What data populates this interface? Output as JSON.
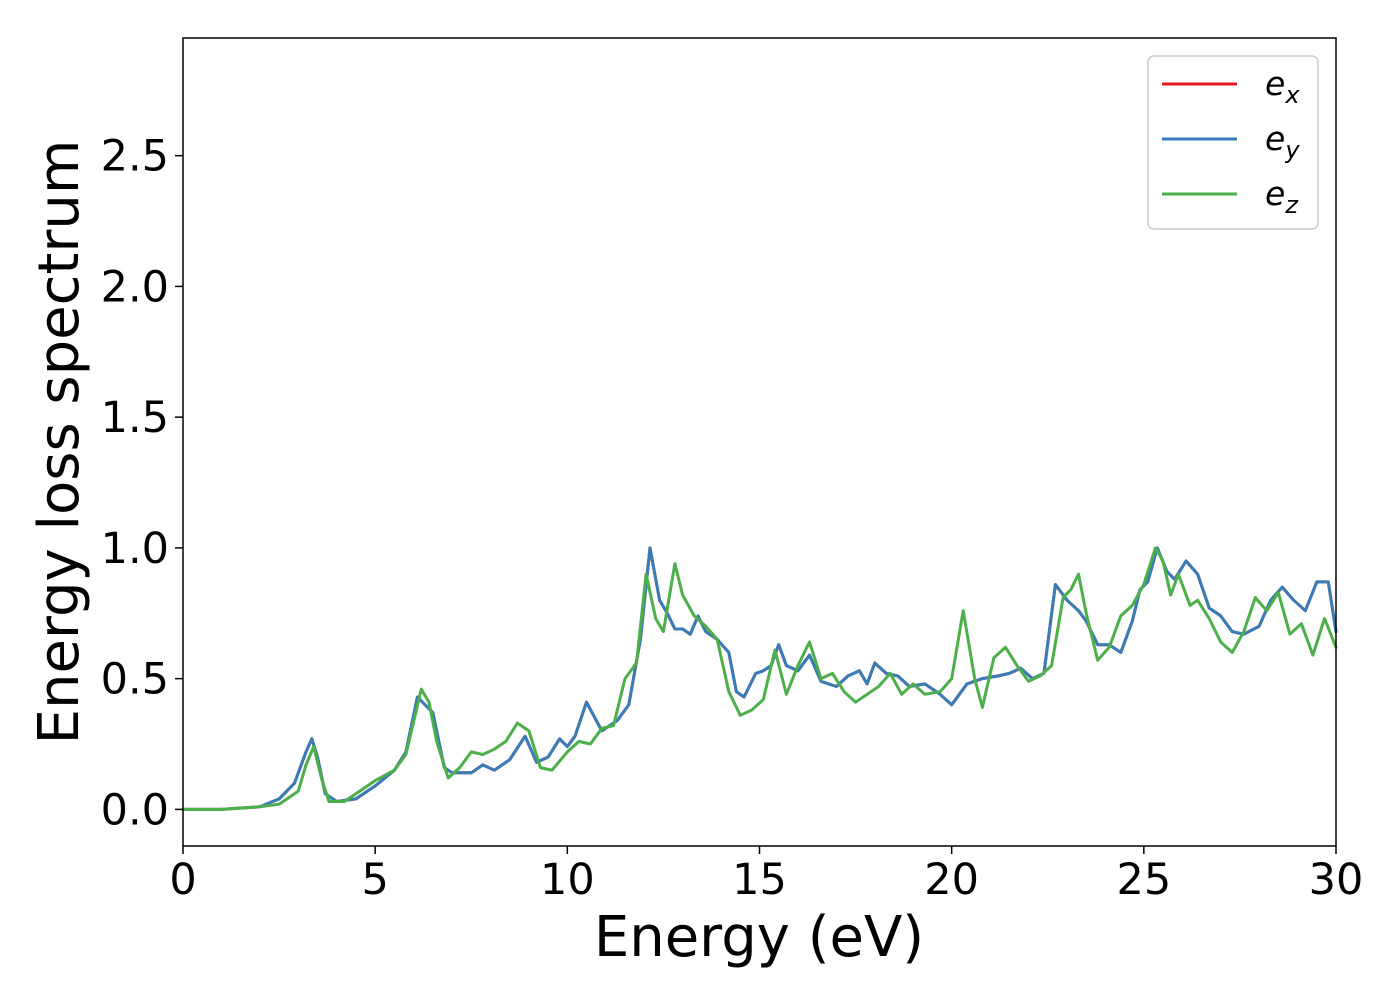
{
  "chart_data": {
    "type": "line",
    "title": "",
    "xlabel": "Energy (eV)",
    "ylabel": "Energy loss spectrum",
    "xlim": [
      0,
      30
    ],
    "ylim": [
      -0.14,
      2.95
    ],
    "x_ticks": [
      0,
      5,
      10,
      15,
      20,
      25,
      30
    ],
    "x_tick_labels": [
      "0",
      "5",
      "10",
      "15",
      "20",
      "25",
      "30"
    ],
    "y_ticks": [
      0.0,
      0.5,
      1.0,
      1.5,
      2.0,
      2.5
    ],
    "y_tick_labels": [
      "0.0",
      "0.5",
      "1.0",
      "1.5",
      "2.0",
      "2.5"
    ],
    "grid": false,
    "legend_position": "top-right",
    "series": [
      {
        "name": "e_x",
        "legend_base": "e",
        "legend_sub": "x",
        "color": "#e41a1c",
        "points": [
          [
            0,
            0
          ],
          [
            1,
            0.0
          ],
          [
            2,
            0.01
          ],
          [
            2.5,
            0.04
          ],
          [
            2.9,
            0.1
          ],
          [
            3.2,
            0.22
          ],
          [
            3.35,
            0.27
          ],
          [
            3.5,
            0.2
          ],
          [
            3.7,
            0.06
          ],
          [
            4.0,
            0.03
          ],
          [
            4.5,
            0.04
          ],
          [
            5.0,
            0.09
          ],
          [
            5.5,
            0.15
          ],
          [
            5.8,
            0.22
          ],
          [
            6.1,
            0.43
          ],
          [
            6.3,
            0.4
          ],
          [
            6.5,
            0.37
          ],
          [
            6.8,
            0.16
          ],
          [
            7.0,
            0.14
          ],
          [
            7.5,
            0.14
          ],
          [
            7.8,
            0.17
          ],
          [
            8.1,
            0.15
          ],
          [
            8.5,
            0.19
          ],
          [
            8.9,
            0.28
          ],
          [
            9.2,
            0.18
          ],
          [
            9.5,
            0.2
          ],
          [
            9.8,
            0.27
          ],
          [
            10.0,
            0.24
          ],
          [
            10.2,
            0.28
          ],
          [
            10.5,
            0.41
          ],
          [
            10.9,
            0.3
          ],
          [
            11.3,
            0.34
          ],
          [
            11.6,
            0.4
          ],
          [
            11.9,
            0.65
          ],
          [
            12.15,
            1.0
          ],
          [
            12.4,
            0.8
          ],
          [
            12.6,
            0.75
          ],
          [
            12.8,
            0.69
          ],
          [
            13.0,
            0.69
          ],
          [
            13.2,
            0.67
          ],
          [
            13.4,
            0.74
          ],
          [
            13.6,
            0.68
          ],
          [
            13.9,
            0.65
          ],
          [
            14.2,
            0.6
          ],
          [
            14.4,
            0.45
          ],
          [
            14.6,
            0.43
          ],
          [
            14.9,
            0.52
          ],
          [
            15.1,
            0.53
          ],
          [
            15.3,
            0.55
          ],
          [
            15.5,
            0.63
          ],
          [
            15.7,
            0.55
          ],
          [
            16.0,
            0.53
          ],
          [
            16.3,
            0.59
          ],
          [
            16.6,
            0.49
          ],
          [
            17.0,
            0.47
          ],
          [
            17.3,
            0.51
          ],
          [
            17.6,
            0.53
          ],
          [
            17.8,
            0.48
          ],
          [
            18.0,
            0.56
          ],
          [
            18.3,
            0.52
          ],
          [
            18.6,
            0.51
          ],
          [
            18.9,
            0.47
          ],
          [
            19.3,
            0.48
          ],
          [
            19.7,
            0.44
          ],
          [
            20.0,
            0.4
          ],
          [
            20.4,
            0.48
          ],
          [
            20.8,
            0.5
          ],
          [
            21.2,
            0.51
          ],
          [
            21.5,
            0.52
          ],
          [
            21.8,
            0.54
          ],
          [
            22.1,
            0.5
          ],
          [
            22.4,
            0.52
          ],
          [
            22.7,
            0.86
          ],
          [
            23.0,
            0.8
          ],
          [
            23.3,
            0.76
          ],
          [
            23.5,
            0.72
          ],
          [
            23.8,
            0.63
          ],
          [
            24.1,
            0.63
          ],
          [
            24.4,
            0.6
          ],
          [
            24.7,
            0.72
          ],
          [
            24.9,
            0.84
          ],
          [
            25.1,
            0.87
          ],
          [
            25.35,
            1.0
          ],
          [
            25.6,
            0.91
          ],
          [
            25.8,
            0.88
          ],
          [
            26.1,
            0.95
          ],
          [
            26.4,
            0.9
          ],
          [
            26.7,
            0.77
          ],
          [
            27.0,
            0.74
          ],
          [
            27.3,
            0.68
          ],
          [
            27.6,
            0.67
          ],
          [
            28.0,
            0.7
          ],
          [
            28.3,
            0.8
          ],
          [
            28.6,
            0.85
          ],
          [
            28.9,
            0.8
          ],
          [
            29.2,
            0.76
          ],
          [
            29.5,
            0.87
          ],
          [
            29.8,
            0.87
          ],
          [
            30,
            0.68
          ]
        ]
      },
      {
        "name": "e_y",
        "legend_base": "e",
        "legend_sub": "y",
        "color": "#377eb8",
        "points": [
          [
            0,
            0
          ],
          [
            1,
            0.0
          ],
          [
            2,
            0.01
          ],
          [
            2.5,
            0.04
          ],
          [
            2.9,
            0.1
          ],
          [
            3.2,
            0.22
          ],
          [
            3.35,
            0.27
          ],
          [
            3.5,
            0.2
          ],
          [
            3.7,
            0.06
          ],
          [
            4.0,
            0.03
          ],
          [
            4.5,
            0.04
          ],
          [
            5.0,
            0.09
          ],
          [
            5.5,
            0.15
          ],
          [
            5.8,
            0.22
          ],
          [
            6.1,
            0.43
          ],
          [
            6.3,
            0.4
          ],
          [
            6.5,
            0.37
          ],
          [
            6.8,
            0.16
          ],
          [
            7.0,
            0.14
          ],
          [
            7.5,
            0.14
          ],
          [
            7.8,
            0.17
          ],
          [
            8.1,
            0.15
          ],
          [
            8.5,
            0.19
          ],
          [
            8.9,
            0.28
          ],
          [
            9.2,
            0.18
          ],
          [
            9.5,
            0.2
          ],
          [
            9.8,
            0.27
          ],
          [
            10.0,
            0.24
          ],
          [
            10.2,
            0.28
          ],
          [
            10.5,
            0.41
          ],
          [
            10.9,
            0.3
          ],
          [
            11.3,
            0.34
          ],
          [
            11.6,
            0.4
          ],
          [
            11.9,
            0.65
          ],
          [
            12.15,
            1.0
          ],
          [
            12.4,
            0.8
          ],
          [
            12.6,
            0.75
          ],
          [
            12.8,
            0.69
          ],
          [
            13.0,
            0.69
          ],
          [
            13.2,
            0.67
          ],
          [
            13.4,
            0.74
          ],
          [
            13.6,
            0.68
          ],
          [
            13.9,
            0.65
          ],
          [
            14.2,
            0.6
          ],
          [
            14.4,
            0.45
          ],
          [
            14.6,
            0.43
          ],
          [
            14.9,
            0.52
          ],
          [
            15.1,
            0.53
          ],
          [
            15.3,
            0.55
          ],
          [
            15.5,
            0.63
          ],
          [
            15.7,
            0.55
          ],
          [
            16.0,
            0.53
          ],
          [
            16.3,
            0.59
          ],
          [
            16.6,
            0.49
          ],
          [
            17.0,
            0.47
          ],
          [
            17.3,
            0.51
          ],
          [
            17.6,
            0.53
          ],
          [
            17.8,
            0.48
          ],
          [
            18.0,
            0.56
          ],
          [
            18.3,
            0.52
          ],
          [
            18.6,
            0.51
          ],
          [
            18.9,
            0.47
          ],
          [
            19.3,
            0.48
          ],
          [
            19.7,
            0.44
          ],
          [
            20.0,
            0.4
          ],
          [
            20.4,
            0.48
          ],
          [
            20.8,
            0.5
          ],
          [
            21.2,
            0.51
          ],
          [
            21.5,
            0.52
          ],
          [
            21.8,
            0.54
          ],
          [
            22.1,
            0.5
          ],
          [
            22.4,
            0.52
          ],
          [
            22.7,
            0.86
          ],
          [
            23.0,
            0.8
          ],
          [
            23.3,
            0.76
          ],
          [
            23.5,
            0.72
          ],
          [
            23.8,
            0.63
          ],
          [
            24.1,
            0.63
          ],
          [
            24.4,
            0.6
          ],
          [
            24.7,
            0.72
          ],
          [
            24.9,
            0.84
          ],
          [
            25.1,
            0.87
          ],
          [
            25.35,
            1.0
          ],
          [
            25.6,
            0.91
          ],
          [
            25.8,
            0.88
          ],
          [
            26.1,
            0.95
          ],
          [
            26.4,
            0.9
          ],
          [
            26.7,
            0.77
          ],
          [
            27.0,
            0.74
          ],
          [
            27.3,
            0.68
          ],
          [
            27.6,
            0.67
          ],
          [
            28.0,
            0.7
          ],
          [
            28.3,
            0.8
          ],
          [
            28.6,
            0.85
          ],
          [
            28.9,
            0.8
          ],
          [
            29.2,
            0.76
          ],
          [
            29.5,
            0.87
          ],
          [
            29.8,
            0.87
          ],
          [
            30,
            0.68
          ]
        ]
      },
      {
        "name": "e_z",
        "legend_base": "e",
        "legend_sub": "z",
        "color": "#4daf4a",
        "points": [
          [
            0,
            0
          ],
          [
            1,
            0.0
          ],
          [
            2,
            0.01
          ],
          [
            2.5,
            0.02
          ],
          [
            3.0,
            0.07
          ],
          [
            3.2,
            0.17
          ],
          [
            3.4,
            0.24
          ],
          [
            3.6,
            0.12
          ],
          [
            3.8,
            0.03
          ],
          [
            4.2,
            0.03
          ],
          [
            4.6,
            0.07
          ],
          [
            5.0,
            0.11
          ],
          [
            5.5,
            0.15
          ],
          [
            5.8,
            0.21
          ],
          [
            6.2,
            0.46
          ],
          [
            6.4,
            0.41
          ],
          [
            6.6,
            0.26
          ],
          [
            6.9,
            0.12
          ],
          [
            7.2,
            0.16
          ],
          [
            7.5,
            0.22
          ],
          [
            7.8,
            0.21
          ],
          [
            8.1,
            0.23
          ],
          [
            8.4,
            0.26
          ],
          [
            8.7,
            0.33
          ],
          [
            9.0,
            0.3
          ],
          [
            9.3,
            0.16
          ],
          [
            9.6,
            0.15
          ],
          [
            10.0,
            0.22
          ],
          [
            10.3,
            0.26
          ],
          [
            10.6,
            0.25
          ],
          [
            10.9,
            0.31
          ],
          [
            11.2,
            0.32
          ],
          [
            11.5,
            0.5
          ],
          [
            11.8,
            0.56
          ],
          [
            12.05,
            0.9
          ],
          [
            12.3,
            0.73
          ],
          [
            12.5,
            0.68
          ],
          [
            12.8,
            0.94
          ],
          [
            13.0,
            0.82
          ],
          [
            13.3,
            0.74
          ],
          [
            13.6,
            0.7
          ],
          [
            13.9,
            0.65
          ],
          [
            14.2,
            0.45
          ],
          [
            14.5,
            0.36
          ],
          [
            14.8,
            0.38
          ],
          [
            15.1,
            0.42
          ],
          [
            15.4,
            0.61
          ],
          [
            15.7,
            0.44
          ],
          [
            16.0,
            0.55
          ],
          [
            16.3,
            0.64
          ],
          [
            16.6,
            0.5
          ],
          [
            16.9,
            0.52
          ],
          [
            17.2,
            0.45
          ],
          [
            17.5,
            0.41
          ],
          [
            17.8,
            0.44
          ],
          [
            18.1,
            0.47
          ],
          [
            18.4,
            0.52
          ],
          [
            18.7,
            0.44
          ],
          [
            19.0,
            0.48
          ],
          [
            19.3,
            0.44
          ],
          [
            19.7,
            0.45
          ],
          [
            20.0,
            0.5
          ],
          [
            20.3,
            0.76
          ],
          [
            20.6,
            0.5
          ],
          [
            20.8,
            0.39
          ],
          [
            21.1,
            0.58
          ],
          [
            21.4,
            0.62
          ],
          [
            21.7,
            0.55
          ],
          [
            22.0,
            0.49
          ],
          [
            22.3,
            0.51
          ],
          [
            22.6,
            0.55
          ],
          [
            22.9,
            0.81
          ],
          [
            23.1,
            0.84
          ],
          [
            23.3,
            0.9
          ],
          [
            23.5,
            0.75
          ],
          [
            23.8,
            0.57
          ],
          [
            24.1,
            0.62
          ],
          [
            24.4,
            0.74
          ],
          [
            24.7,
            0.78
          ],
          [
            25.0,
            0.86
          ],
          [
            25.3,
            1.0
          ],
          [
            25.5,
            0.95
          ],
          [
            25.7,
            0.82
          ],
          [
            25.9,
            0.9
          ],
          [
            26.2,
            0.78
          ],
          [
            26.4,
            0.8
          ],
          [
            26.7,
            0.73
          ],
          [
            27.0,
            0.64
          ],
          [
            27.3,
            0.6
          ],
          [
            27.6,
            0.68
          ],
          [
            27.9,
            0.81
          ],
          [
            28.2,
            0.76
          ],
          [
            28.5,
            0.83
          ],
          [
            28.8,
            0.67
          ],
          [
            29.1,
            0.71
          ],
          [
            29.4,
            0.59
          ],
          [
            29.7,
            0.73
          ],
          [
            30,
            0.62
          ]
        ]
      }
    ]
  }
}
